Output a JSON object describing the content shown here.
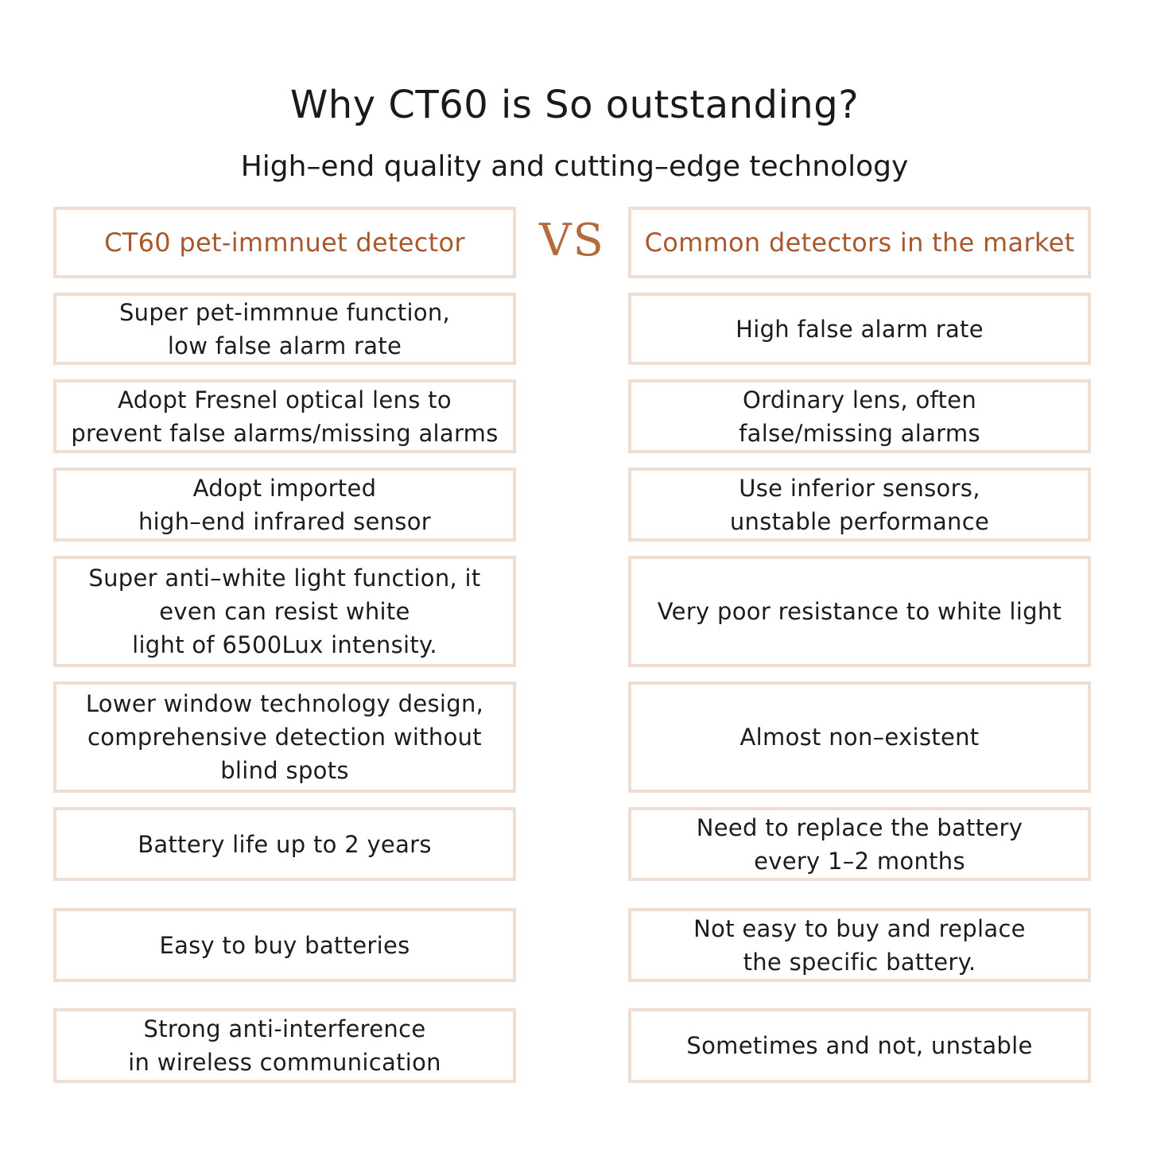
{
  "title": "Why CT60 is So outstanding?",
  "subtitle": "High–end quality and cutting–edge technology",
  "vs_label": "VS",
  "left_header": "CT60 pet-immnuet detector",
  "right_header": "Common detectors in the market",
  "rows": [
    {
      "left": "Super pet-immnue function,\nlow false alarm rate",
      "right": "High false alarm rate"
    },
    {
      "left": "Adopt Fresnel optical lens to\nprevent false alarms/missing alarms",
      "right": "Ordinary lens, often\nfalse/missing alarms"
    },
    {
      "left": "Adopt imported\nhigh–end infrared sensor",
      "right": "Use inferior sensors,\nunstable performance"
    },
    {
      "left": "Super anti–white light function, it\neven can resist white\nlight of 6500Lux intensity.",
      "right": "Very poor resistance to white light"
    },
    {
      "left": "Lower window technology design,\ncomprehensive detection without\nblind spots",
      "right": "Almost non–existent"
    },
    {
      "left": "Battery life up to 2 years",
      "right": "Need to replace the battery\nevery 1–2 months"
    },
    {
      "left": "Easy to buy batteries",
      "right": "Not easy to buy and replace\nthe specific battery."
    },
    {
      "left": "Strong anti-interference\nin wireless communication",
      "right": "Sometimes and not, unstable"
    }
  ]
}
